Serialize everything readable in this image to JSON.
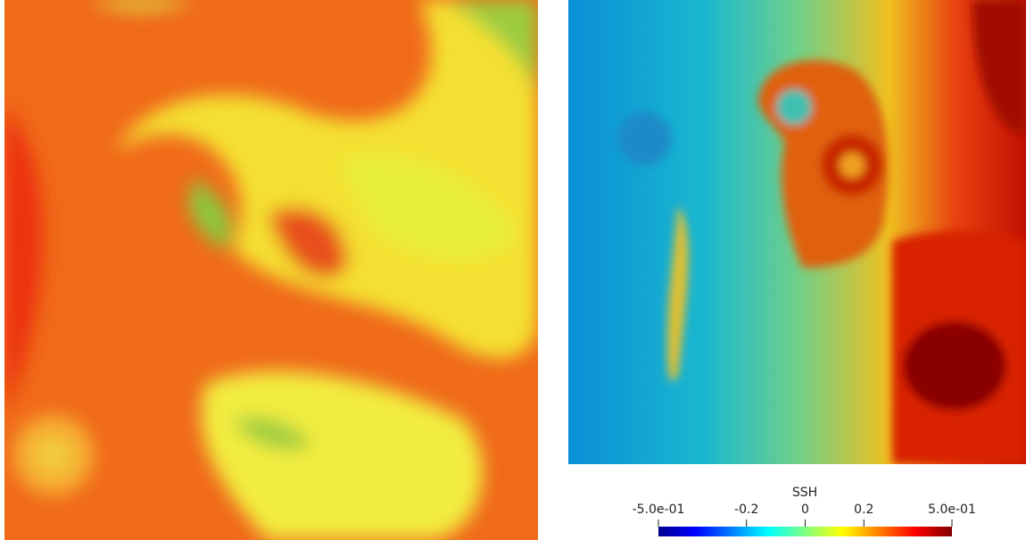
{
  "chart_data": {
    "type": "heatmap",
    "colorbar_title": "SSH",
    "xlim": [
      -0.5,
      0.5
    ],
    "xticks": [
      {
        "value": -0.5,
        "label": "-5.0e-01"
      },
      -0.2,
      0,
      0.2,
      {
        "value": 0.5,
        "label": "5.0e-01"
      }
    ]
  }
}
